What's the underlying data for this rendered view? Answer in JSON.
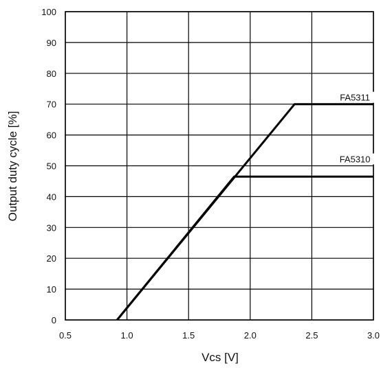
{
  "chart_data": {
    "type": "line",
    "xlabel": "Vcs [V]",
    "ylabel": "Output duty cycle [%]",
    "xlim": [
      0.5,
      3.0
    ],
    "ylim": [
      0,
      100
    ],
    "x_ticks": [
      "0.5",
      "1.0",
      "1.5",
      "2.0",
      "2.5",
      "3.0"
    ],
    "y_ticks": [
      "0",
      "10",
      "20",
      "30",
      "40",
      "50",
      "60",
      "70",
      "80",
      "90",
      "100"
    ],
    "grid": true,
    "series": [
      {
        "name": "FA5311",
        "x": [
          0.92,
          2.36,
          3.0
        ],
        "y": [
          0,
          70,
          70
        ]
      },
      {
        "name": "FA5310",
        "x": [
          0.92,
          1.87,
          3.0
        ],
        "y": [
          0,
          46.5,
          46.5
        ]
      }
    ],
    "annotations": [
      {
        "text": "FA5311",
        "x": 2.85,
        "y": 70
      },
      {
        "text": "FA5310",
        "x": 2.85,
        "y": 50
      }
    ],
    "colors": {
      "line": "#000000",
      "grid": "#000000"
    }
  }
}
